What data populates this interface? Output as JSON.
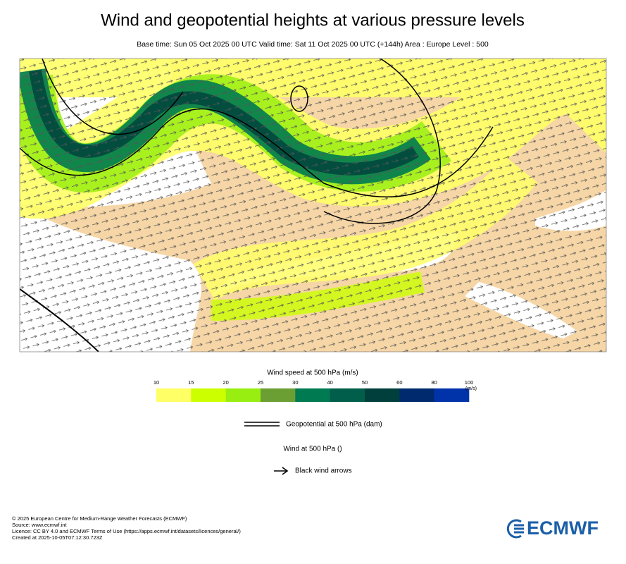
{
  "title": "Wind and geopotential heights at various pressure levels",
  "subtitle": "Base time: Sun 05 Oct 2025 00 UTC Valid time: Sat 11 Oct 2025 00 UTC (+144h) Area : Europe Level : 500",
  "colorbar": {
    "title": "Wind speed at 500 hPa (m/s)",
    "ticks": [
      10,
      15,
      20,
      25,
      30,
      40,
      50,
      60,
      80,
      100
    ],
    "unit": "(m/s)",
    "colors": [
      "#ffff66",
      "#ccff00",
      "#99ee11",
      "#6b9e33",
      "#007a50",
      "#005e4a",
      "#003f3c",
      "#002a6e",
      "#0033aa"
    ]
  },
  "geopotential_label": "Geopotential at 500 hPa (dam)",
  "wind_title": "Wind at 500 hPa ()",
  "arrow_label": "Black wind arrows",
  "footer": [
    "© 2025 European Centre for Medium-Range Weather Forecasts (ECMWF)",
    "Source: www.ecmwf.int",
    "Licence: CC BY 4.0 and ECMWF Terms of Use (https://apps.ecmwf.int/datasets/licences/general/)",
    "Created at 2025-10-05T07:12:30.723Z"
  ],
  "logo": "ECMWF"
}
